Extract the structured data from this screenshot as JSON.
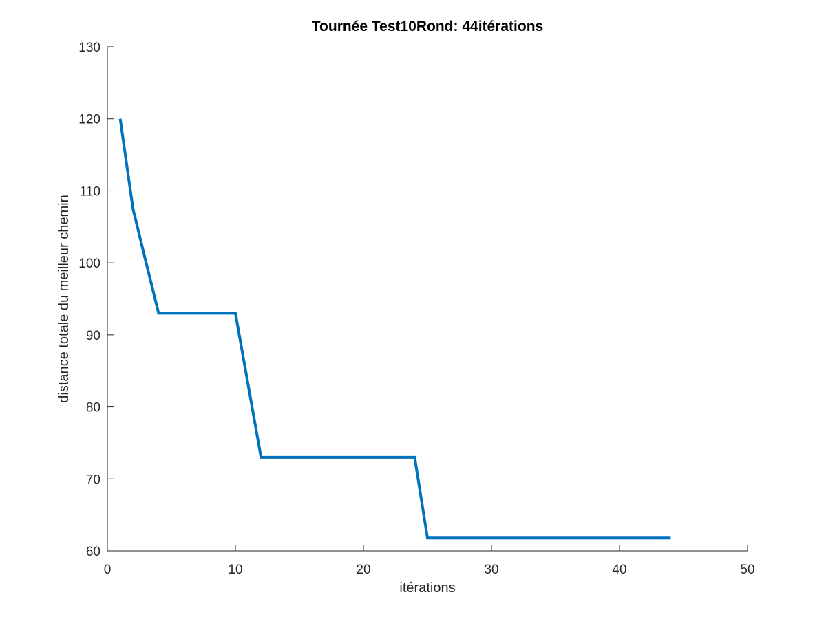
{
  "chart_data": {
    "type": "line",
    "title": "Tournée Test10Rond: 44itérations",
    "xlabel": "itérations",
    "ylabel": "distance totale du meilleur chemin",
    "xlim": [
      0,
      50
    ],
    "ylim": [
      60,
      130
    ],
    "xticks": [
      0,
      10,
      20,
      30,
      40,
      50
    ],
    "yticks": [
      60,
      70,
      80,
      90,
      100,
      110,
      120,
      130
    ],
    "grid": false,
    "series": [
      {
        "color": "#0072BD",
        "x": [
          1,
          2,
          3,
          4,
          5,
          6,
          7,
          8,
          9,
          10,
          11,
          12,
          13,
          14,
          15,
          16,
          17,
          18,
          19,
          20,
          21,
          22,
          23,
          24,
          25,
          26,
          27,
          28,
          29,
          30,
          31,
          32,
          33,
          34,
          35,
          36,
          37,
          38,
          39,
          40,
          41,
          42,
          43,
          44
        ],
        "y": [
          120,
          107.5,
          100.2,
          93,
          93,
          93,
          93,
          93,
          93,
          93,
          83,
          73,
          73,
          73,
          73,
          73,
          73,
          73,
          73,
          73,
          73,
          73,
          73,
          73,
          61.8,
          61.8,
          61.8,
          61.8,
          61.8,
          61.8,
          61.8,
          61.8,
          61.8,
          61.8,
          61.8,
          61.8,
          61.8,
          61.8,
          61.8,
          61.8,
          61.8,
          61.8,
          61.8,
          61.8
        ]
      }
    ]
  }
}
